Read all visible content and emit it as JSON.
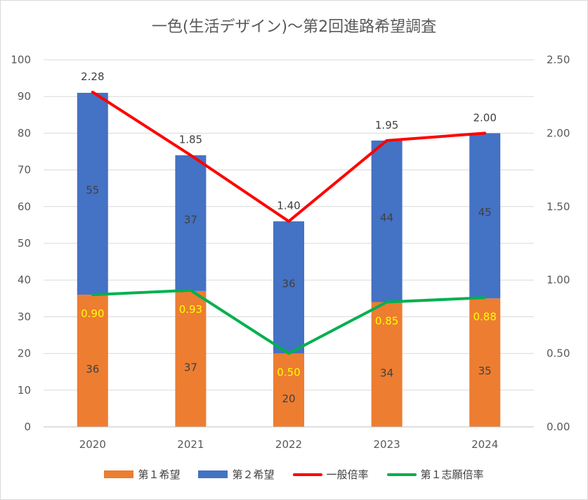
{
  "chart_data": {
    "type": "bar",
    "title": "一色(生活デザイン)～第2回進路希望調査",
    "categories": [
      "2020",
      "2021",
      "2022",
      "2023",
      "2024"
    ],
    "series": [
      {
        "name": "第１希望",
        "kind": "stacked-bar",
        "axis": "left",
        "color": "#ed7d31",
        "values": [
          36,
          37,
          20,
          34,
          35
        ],
        "labels": [
          "36",
          "37",
          "20",
          "34",
          "35"
        ]
      },
      {
        "name": "第２希望",
        "kind": "stacked-bar",
        "axis": "left",
        "color": "#4472c4",
        "values": [
          55,
          37,
          36,
          44,
          45
        ],
        "labels": [
          "55",
          "37",
          "36",
          "44",
          "45"
        ]
      },
      {
        "name": "一般倍率",
        "kind": "line",
        "axis": "right",
        "color": "#ff0000",
        "values": [
          2.28,
          1.85,
          1.4,
          1.95,
          2.0
        ],
        "labels": [
          "2.28",
          "1.85",
          "1.40",
          "1.95",
          "2.00"
        ]
      },
      {
        "name": "第１志願倍率",
        "kind": "line",
        "axis": "right",
        "color": "#00b050",
        "values": [
          0.9,
          0.93,
          0.5,
          0.85,
          0.88
        ],
        "labels": [
          "0.90",
          "0.93",
          "0.50",
          "0.85",
          "0.88"
        ]
      }
    ],
    "left_axis": {
      "min": 0,
      "max": 100,
      "ticks": [
        "0",
        "10",
        "20",
        "30",
        "40",
        "50",
        "60",
        "70",
        "80",
        "90",
        "100"
      ]
    },
    "right_axis": {
      "min": 0,
      "max": 2.5,
      "ticks": [
        "0.00",
        "0.50",
        "1.00",
        "1.50",
        "2.00",
        "2.50"
      ]
    },
    "grid": true,
    "legend_position": "bottom"
  }
}
